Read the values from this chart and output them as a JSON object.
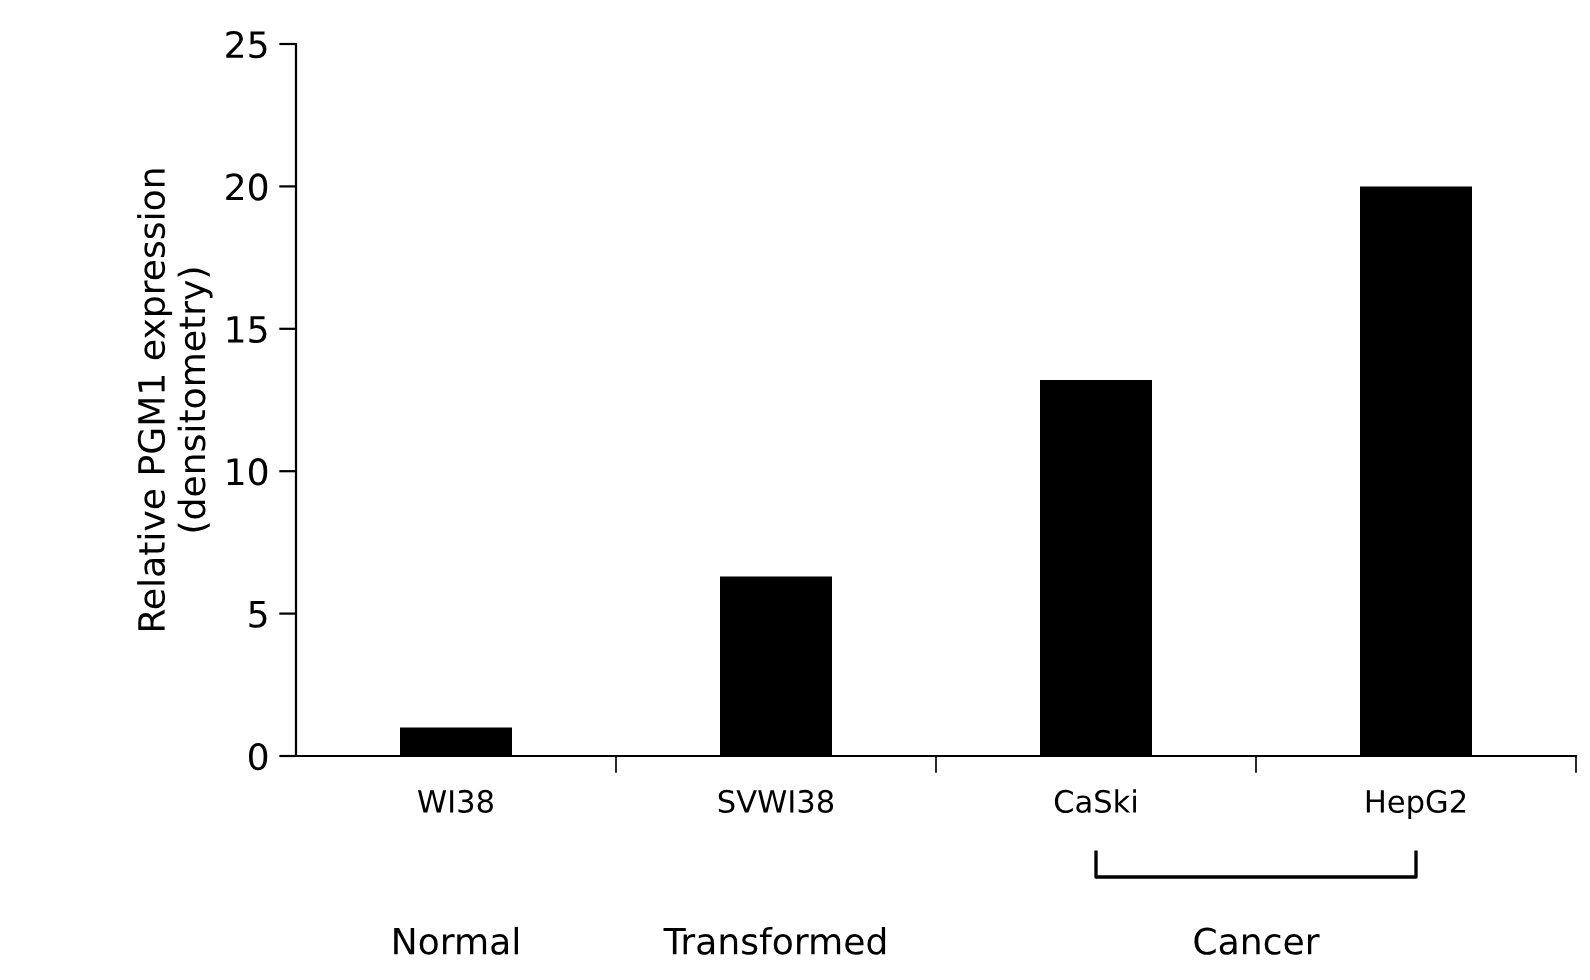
{
  "chart_data": {
    "type": "bar",
    "ylabel": "Relative PGM1 expression\n(densitometry)",
    "categories": [
      "WI38",
      "SVWI38",
      "CaSki",
      "HepG2"
    ],
    "values": [
      1.0,
      6.3,
      13.2,
      20.0
    ],
    "color": "#000000",
    "ylim": [
      0,
      25
    ],
    "yticks": [
      0,
      5,
      10,
      15,
      20,
      25
    ],
    "grid": false,
    "legend": false,
    "annotations": [
      "Normal",
      "Transformed",
      "Cancer"
    ]
  }
}
